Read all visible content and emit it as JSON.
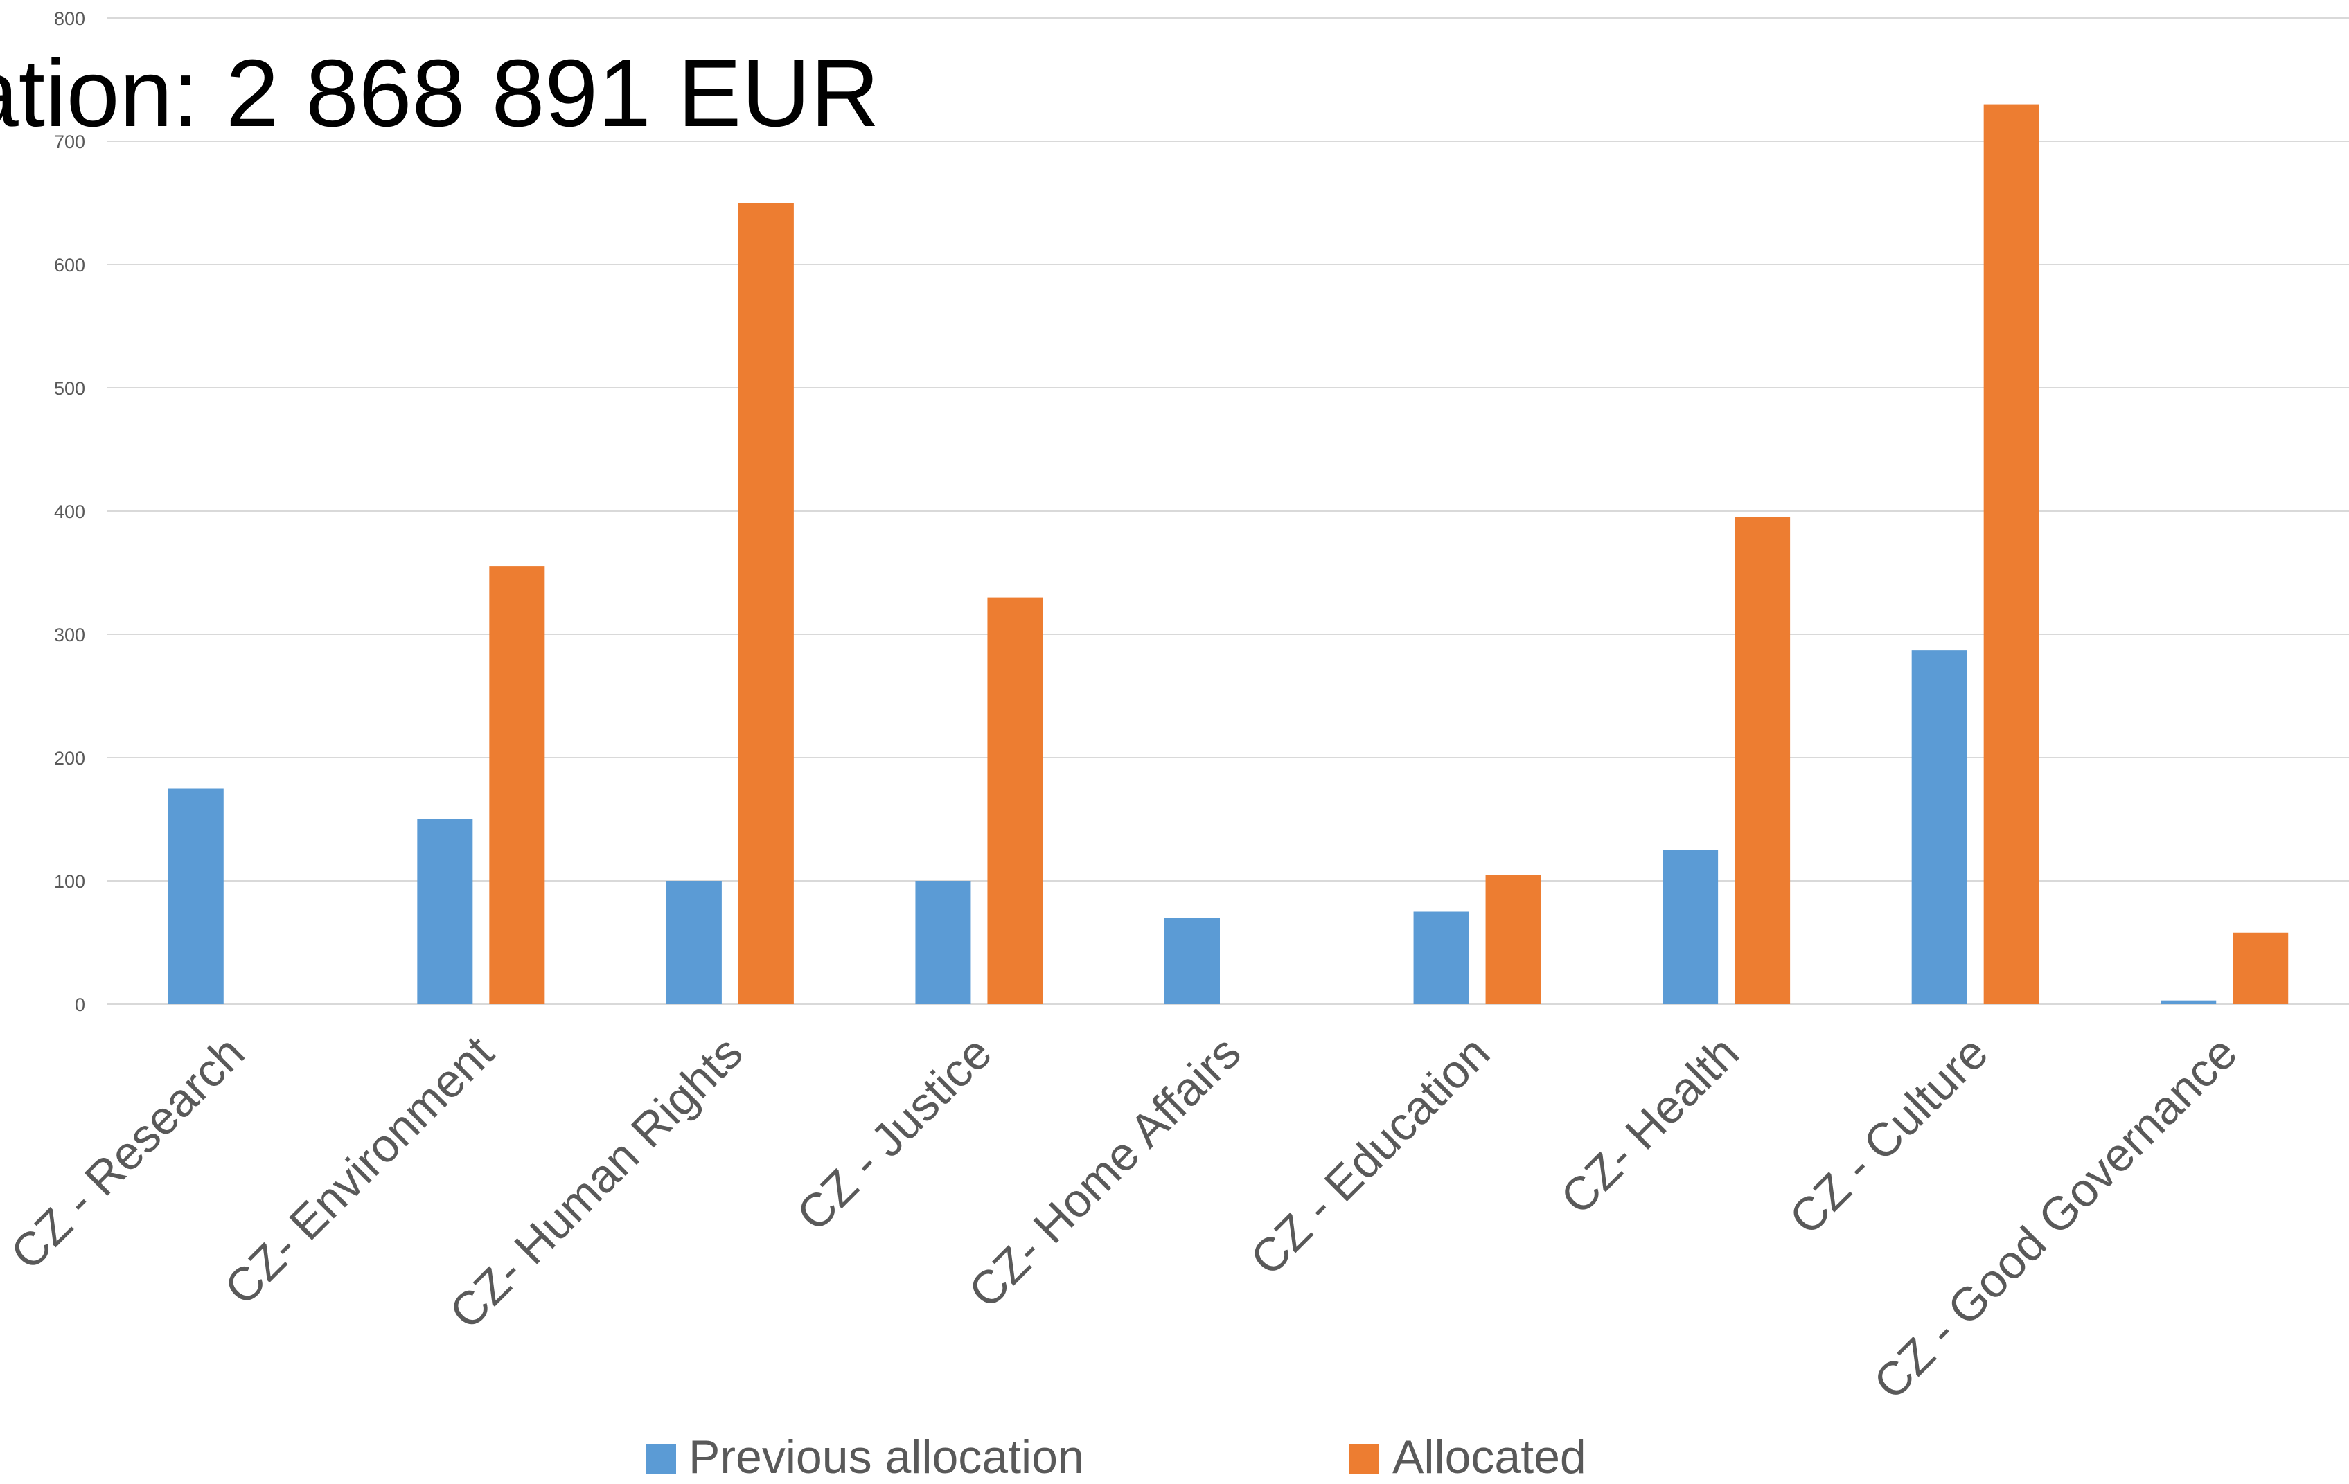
{
  "title": "ation: 2 868 891 EUR",
  "colors": {
    "previous": "#5b9bd5",
    "allocated": "#ed7d31"
  },
  "legend": {
    "previous_label": "Previous allocation",
    "allocated_label": "Allocated"
  },
  "chart_data": {
    "type": "bar",
    "title": "ation: 2 868 891 EUR",
    "xlabel": "",
    "ylabel": "",
    "ylim": [
      0,
      800
    ],
    "yticks": [
      0,
      100,
      200,
      300,
      400,
      500,
      600,
      700,
      800
    ],
    "grid": true,
    "legend_position": "bottom",
    "categories": [
      "CZ - Research",
      "CZ- Environment",
      "CZ- Human Rights",
      "CZ - Justice",
      "CZ- Home Affairs",
      "CZ - Education",
      "CZ- Health",
      "CZ - Culture",
      "CZ - Good Governance"
    ],
    "series": [
      {
        "name": "Previous allocation",
        "values": [
          175,
          150,
          100,
          100,
          70,
          75,
          125,
          287,
          3
        ]
      },
      {
        "name": "Allocated",
        "values": [
          0,
          355,
          650,
          330,
          0,
          105,
          395,
          730,
          58
        ]
      }
    ]
  }
}
